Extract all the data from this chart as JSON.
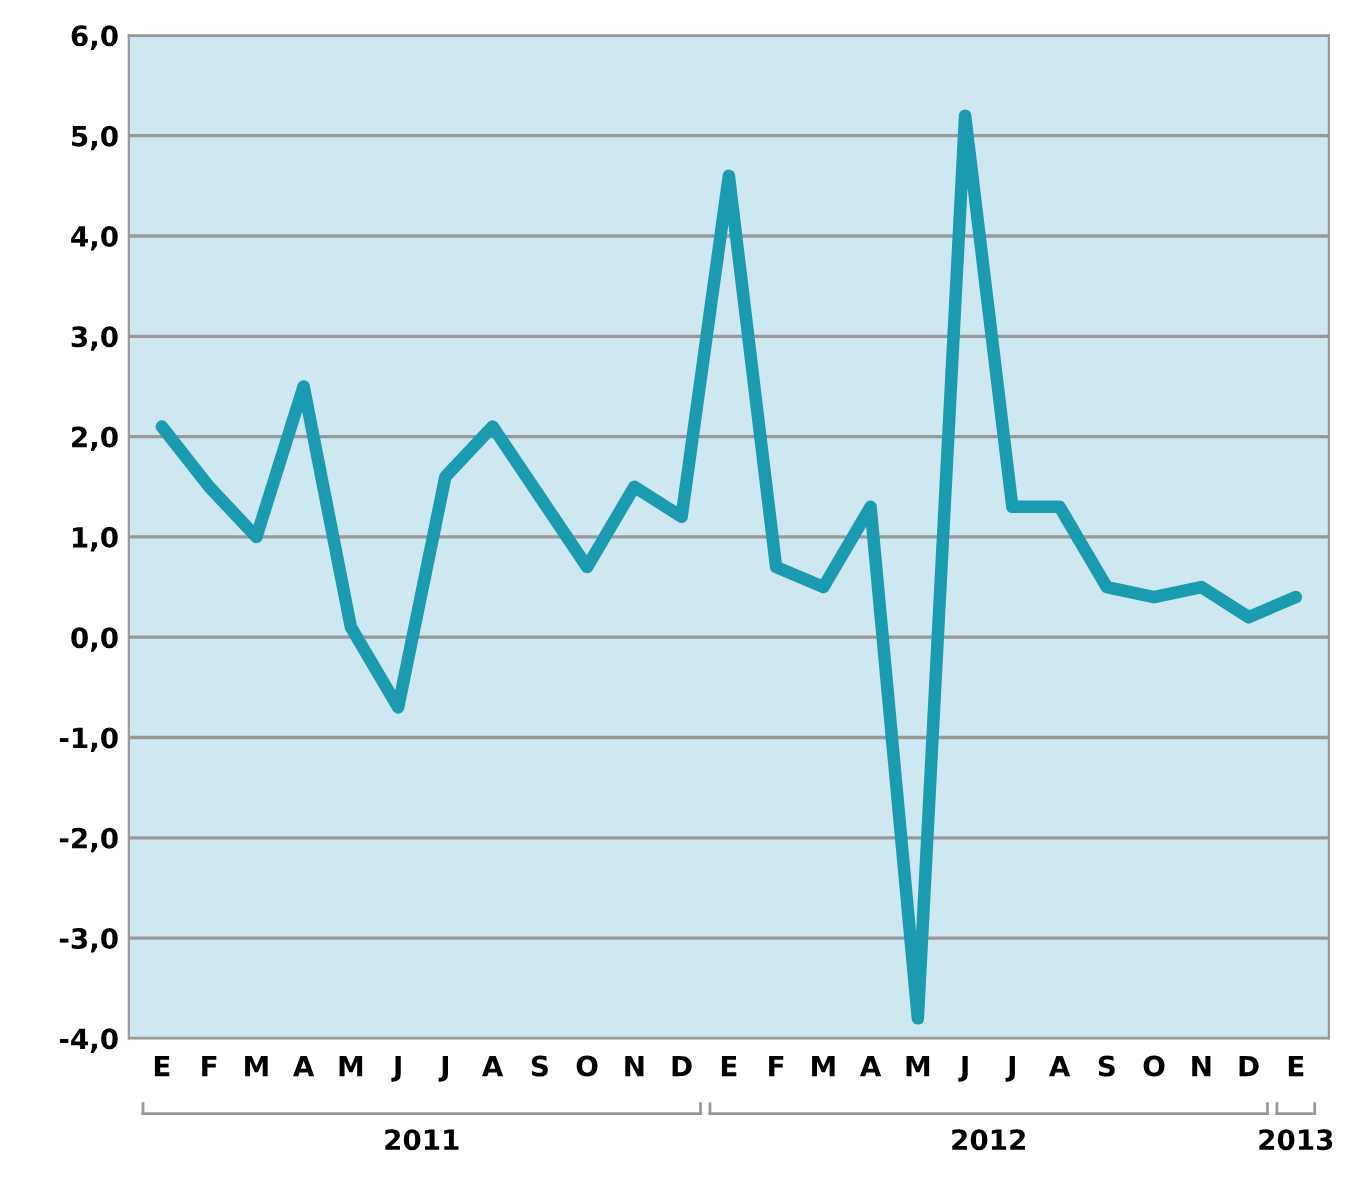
{
  "chart_data": {
    "type": "line",
    "categories": [
      "E",
      "F",
      "M",
      "A",
      "M",
      "J",
      "J",
      "A",
      "S",
      "O",
      "N",
      "D",
      "E",
      "F",
      "M",
      "A",
      "M",
      "J",
      "J",
      "A",
      "S",
      "O",
      "N",
      "D",
      "E"
    ],
    "series": [
      {
        "color": "#1a9bb0",
        "values": [
          2.1,
          1.5,
          1.0,
          2.5,
          0.1,
          -0.7,
          1.6,
          2.1,
          1.4,
          0.7,
          1.5,
          1.2,
          4.6,
          0.7,
          0.5,
          1.3,
          -3.8,
          5.2,
          1.3,
          1.3,
          0.5,
          0.4,
          0.5,
          0.2,
          0.4
        ]
      }
    ],
    "ylim": [
      -4,
      6
    ],
    "yticks": [
      {
        "value": -4,
        "label": "-4,0"
      },
      {
        "value": -3,
        "label": "-3,0"
      },
      {
        "value": -2,
        "label": "-2,0"
      },
      {
        "value": -1,
        "label": "-1,0"
      },
      {
        "value": 0,
        "label": "0,0"
      },
      {
        "value": 1,
        "label": "1,0"
      },
      {
        "value": 2,
        "label": "2,0"
      },
      {
        "value": 3,
        "label": "3,0"
      },
      {
        "value": 4,
        "label": "4,0"
      },
      {
        "value": 5,
        "label": "5,0"
      },
      {
        "value": 6,
        "label": "6,0"
      }
    ],
    "grid": "y",
    "marker": "none",
    "line_style": "solid",
    "annotations": [
      "2011",
      "2012",
      "2013"
    ]
  }
}
